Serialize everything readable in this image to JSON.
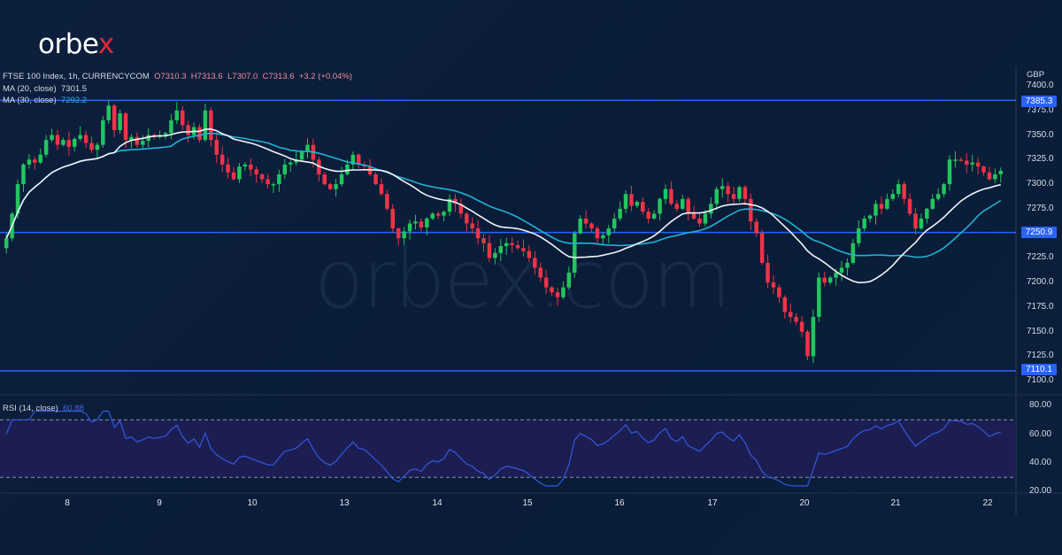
{
  "brand": {
    "logo_text": "orbe",
    "logo_x": "x",
    "watermark": "orbex.com"
  },
  "header": {
    "symbol_line": "FTSE 100 Index, 1h, CURRENCYCOM",
    "open": "O7310.3",
    "high": "H7313.6",
    "low": "L7307.0",
    "close": "C7313.6",
    "change": "+3.2 (+0.04%)",
    "ma20_label": "MA (20, close)",
    "ma20_value": "7301.5",
    "ma30_label": "MA (30, close)",
    "ma30_value": "7292.2"
  },
  "rsi": {
    "label": "RSI (14, close)",
    "value": "60.88"
  },
  "price_axis": {
    "currency": "GBP",
    "ticks": [
      "7400.0",
      "7375.0",
      "7350.0",
      "7325.0",
      "7300.0",
      "7275.0",
      "7250.0",
      "7225.0",
      "7200.0",
      "7175.0",
      "7150.0",
      "7125.0",
      "7100.0"
    ],
    "levels": [
      "7385.3",
      "7250.9",
      "7110.1"
    ]
  },
  "rsi_axis": {
    "ticks": [
      "80.00",
      "60.00",
      "40.00",
      "20.00"
    ]
  },
  "time_axis": {
    "labels": [
      "8",
      "9",
      "10",
      "13",
      "14",
      "15",
      "16",
      "17",
      "20",
      "21",
      "22"
    ]
  },
  "colors": {
    "up": "#22c55e",
    "down": "#ef3347",
    "ma20": "#f2f4f8",
    "ma30": "#1fb3d6",
    "level": "#2962ff",
    "rsi": "#3358e0",
    "rsi_band": "#1c1e52"
  },
  "chart_data": {
    "type": "candlestick",
    "title": "FTSE 100 Index, 1h, CURRENCYCOM",
    "xlabel": "",
    "ylabel": "GBP",
    "ylim": [
      7095,
      7405
    ],
    "x_ticks": [
      "8",
      "9",
      "10",
      "13",
      "14",
      "15",
      "16",
      "17",
      "20",
      "21",
      "22"
    ],
    "horizontal_levels": [
      7385.3,
      7250.9,
      7110.1
    ],
    "series": [
      {
        "name": "MA (20, close)",
        "last": 7301.5
      },
      {
        "name": "MA (30, close)",
        "last": 7292.2
      },
      {
        "name": "RSI (14, close)",
        "last": 60.88,
        "bands": [
          30,
          70
        ],
        "ylim": [
          20,
          80
        ]
      }
    ],
    "last_candle": {
      "open": 7310.3,
      "high": 7313.6,
      "low": 7307.0,
      "close": 7313.6,
      "change": 3.2,
      "change_pct": 0.04
    },
    "closes": [
      7245,
      7270,
      7300,
      7320,
      7325,
      7322,
      7330,
      7345,
      7350,
      7340,
      7345,
      7338,
      7346,
      7350,
      7342,
      7335,
      7340,
      7365,
      7380,
      7355,
      7372,
      7345,
      7348,
      7340,
      7344,
      7350,
      7348,
      7350,
      7352,
      7365,
      7375,
      7360,
      7350,
      7358,
      7345,
      7375,
      7345,
      7330,
      7320,
      7312,
      7305,
      7318,
      7320,
      7315,
      7310,
      7305,
      7300,
      7300,
      7310,
      7320,
      7322,
      7325,
      7333,
      7340,
      7325,
      7310,
      7300,
      7295,
      7300,
      7310,
      7320,
      7330,
      7320,
      7318,
      7310,
      7300,
      7290,
      7275,
      7255,
      7245,
      7252,
      7260,
      7262,
      7256,
      7265,
      7270,
      7268,
      7272,
      7285,
      7280,
      7270,
      7260,
      7255,
      7245,
      7240,
      7225,
      7230,
      7237,
      7240,
      7238,
      7235,
      7232,
      7225,
      7215,
      7205,
      7195,
      7190,
      7185,
      7195,
      7210,
      7250,
      7265,
      7260,
      7255,
      7245,
      7248,
      7255,
      7265,
      7275,
      7290,
      7278,
      7282,
      7272,
      7265,
      7270,
      7285,
      7295,
      7280,
      7275,
      7285,
      7270,
      7265,
      7260,
      7270,
      7280,
      7295,
      7298,
      7290,
      7285,
      7297,
      7285,
      7262,
      7250,
      7220,
      7200,
      7195,
      7185,
      7170,
      7165,
      7160,
      7150,
      7125,
      7165,
      7205,
      7200,
      7205,
      7210,
      7215,
      7220,
      7240,
      7255,
      7265,
      7268,
      7280,
      7275,
      7285,
      7290,
      7300,
      7285,
      7270,
      7255,
      7265,
      7275,
      7285,
      7290,
      7300,
      7325,
      7325,
      7324,
      7320,
      7322,
      7318,
      7312,
      7305,
      7310,
      7313.6
    ]
  }
}
